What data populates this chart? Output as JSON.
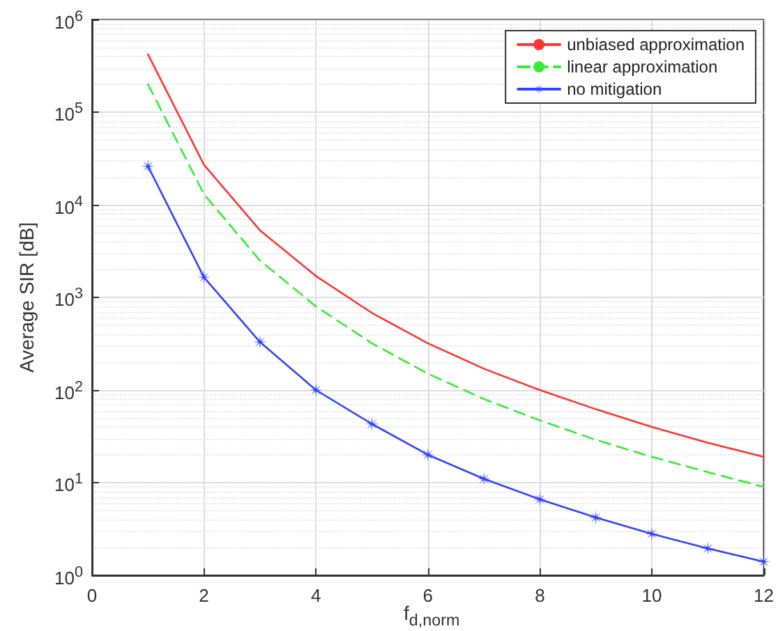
{
  "chart_data": {
    "type": "line",
    "xlabel": "f$_{d,norm}$",
    "ylabel": "Average SIR [dB]",
    "x": [
      1,
      2,
      3,
      4,
      5,
      6,
      7,
      8,
      9,
      10,
      11,
      12
    ],
    "series": [
      {
        "name": "unbiased approximation",
        "color": "#ff3333",
        "line_style": "solid",
        "marker": "none",
        "values": [
          420000,
          27000,
          5300,
          1700,
          680,
          320,
          170,
          100,
          62,
          40,
          27,
          19
        ]
      },
      {
        "name": "linear approximation",
        "color": "#33ee33",
        "line_style": "dashed",
        "marker": "none",
        "values": [
          200000,
          13000,
          2500,
          800,
          320,
          150,
          80,
          47,
          29,
          19,
          13,
          9
        ]
      },
      {
        "name": "no mitigation",
        "color": "#3344ff",
        "line_style": "solid",
        "marker": "star",
        "values": [
          26000,
          1650,
          330,
          100,
          43,
          20,
          11,
          6.6,
          4.2,
          2.8,
          1.95,
          1.4
        ]
      }
    ],
    "xlim": [
      0,
      12
    ],
    "xticks": [
      0,
      2,
      4,
      6,
      8,
      10,
      12
    ],
    "ylim": [
      1,
      1000000
    ],
    "yticks": [
      {
        "value": 1,
        "label": "10$^{0}$"
      },
      {
        "value": 10,
        "label": "10$^{1}$"
      },
      {
        "value": 100,
        "label": "10$^{2}$"
      },
      {
        "value": 1000,
        "label": "10$^{3}$"
      },
      {
        "value": 10000,
        "label": "10$^{4}$"
      },
      {
        "value": 100000,
        "label": "10$^{5}$"
      },
      {
        "value": 1000000,
        "label": "10$^{6}$"
      }
    ],
    "log": "y",
    "grid": true,
    "legend": "top right"
  }
}
